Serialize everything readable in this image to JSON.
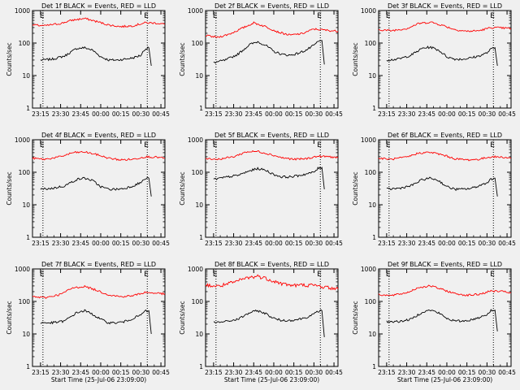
{
  "figure": {
    "background": "#f0f0f0",
    "series_colors": {
      "events": "#000000",
      "lld": "#ff0000"
    }
  },
  "chart_data": [
    {
      "type": "line",
      "title": "Det 1f BLACK = Events, RED = LLD",
      "ylabel": "Counts/sec",
      "xlabel": "",
      "yscale": "log",
      "ylim": [
        1,
        1000
      ],
      "y_ticks": [
        "1",
        "10",
        "100",
        "1000"
      ],
      "x_ticks": [
        "23:15",
        "23:30",
        "23:45",
        "00:00",
        "00:15",
        "00:30",
        "00:45"
      ],
      "xlim": [
        23.15,
        24.8
      ],
      "markers": [
        {
          "x": 23.28,
          "label": "E"
        },
        {
          "x": 24.58,
          "label": "E"
        }
      ],
      "series": [
        {
          "x": [
            23.25,
            23.4,
            23.55,
            23.7,
            23.8,
            23.9,
            24.0,
            24.1,
            24.2,
            24.3,
            24.4,
            24.5,
            24.55,
            24.6,
            24.63
          ],
          "values": [
            30,
            32,
            40,
            68,
            72,
            60,
            38,
            30,
            30,
            32,
            35,
            42,
            65,
            72,
            20
          ]
        },
        {
          "x": [
            23.15,
            23.3,
            23.5,
            23.65,
            23.8,
            23.95,
            24.1,
            24.25,
            24.4,
            24.55,
            24.7,
            24.8
          ],
          "values": [
            360,
            340,
            400,
            510,
            570,
            460,
            360,
            320,
            340,
            420,
            410,
            380
          ]
        }
      ]
    },
    {
      "type": "line",
      "title": "Det 2f BLACK = Events, RED = LLD",
      "ylabel": "Counts/sec",
      "xlabel": "",
      "yscale": "log",
      "ylim": [
        1,
        1000
      ],
      "y_ticks": [
        "1",
        "10",
        "100",
        "1000"
      ],
      "x_ticks": [
        "23:15",
        "23:30",
        "23:45",
        "00:00",
        "00:15",
        "00:30",
        "00:45"
      ],
      "xlim": [
        23.15,
        24.8
      ],
      "markers": [
        {
          "x": 23.28,
          "label": "E"
        },
        {
          "x": 24.58,
          "label": "E"
        }
      ],
      "series": [
        {
          "x": [
            23.25,
            23.4,
            23.55,
            23.7,
            23.8,
            23.9,
            24.0,
            24.1,
            24.2,
            24.3,
            24.4,
            24.5,
            24.55,
            24.6,
            24.63
          ],
          "values": [
            25,
            30,
            45,
            90,
            110,
            85,
            55,
            45,
            42,
            48,
            60,
            85,
            110,
            120,
            22
          ]
        },
        {
          "x": [
            23.15,
            23.3,
            23.45,
            23.6,
            23.75,
            23.9,
            24.05,
            24.2,
            24.35,
            24.5,
            24.65,
            24.8
          ],
          "values": [
            170,
            150,
            190,
            280,
            420,
            320,
            220,
            175,
            195,
            270,
            250,
            230
          ]
        }
      ]
    },
    {
      "type": "line",
      "title": "Det 3f BLACK = Events, RED = LLD",
      "ylabel": "Counts/sec",
      "xlabel": "",
      "yscale": "log",
      "ylim": [
        1,
        1000
      ],
      "y_ticks": [
        "1",
        "10",
        "100",
        "1000"
      ],
      "x_ticks": [
        "23:15",
        "23:30",
        "23:45",
        "00:00",
        "00:15",
        "00:30",
        "00:45"
      ],
      "xlim": [
        23.15,
        24.8
      ],
      "markers": [
        {
          "x": 23.28,
          "label": "E"
        },
        {
          "x": 24.58,
          "label": "E"
        }
      ],
      "series": [
        {
          "x": [
            23.25,
            23.4,
            23.55,
            23.7,
            23.8,
            23.9,
            24.0,
            24.1,
            24.2,
            24.3,
            24.4,
            24.5,
            24.55,
            24.6,
            24.63
          ],
          "values": [
            30,
            32,
            42,
            70,
            75,
            60,
            38,
            32,
            32,
            35,
            40,
            50,
            65,
            72,
            20
          ]
        },
        {
          "x": [
            23.15,
            23.3,
            23.5,
            23.65,
            23.8,
            23.95,
            24.1,
            24.25,
            24.4,
            24.55,
            24.7,
            24.8
          ],
          "values": [
            260,
            240,
            280,
            400,
            440,
            350,
            260,
            230,
            240,
            300,
            290,
            280
          ]
        }
      ]
    },
    {
      "type": "line",
      "title": "Det 4f BLACK = Events, RED = LLD",
      "ylabel": "Counts/sec",
      "xlabel": "",
      "yscale": "log",
      "ylim": [
        1,
        1000
      ],
      "y_ticks": [
        "1",
        "10",
        "100",
        "1000"
      ],
      "x_ticks": [
        "23:15",
        "23:30",
        "23:45",
        "00:00",
        "00:15",
        "00:30",
        "00:45"
      ],
      "xlim": [
        23.15,
        24.8
      ],
      "markers": [
        {
          "x": 23.28,
          "label": "E"
        },
        {
          "x": 24.58,
          "label": "E"
        }
      ],
      "series": [
        {
          "x": [
            23.25,
            23.4,
            23.55,
            23.7,
            23.8,
            23.9,
            24.0,
            24.1,
            24.2,
            24.3,
            24.4,
            24.5,
            24.55,
            24.6,
            24.63
          ],
          "values": [
            30,
            32,
            38,
            60,
            66,
            55,
            36,
            30,
            30,
            32,
            38,
            48,
            62,
            66,
            18
          ]
        },
        {
          "x": [
            23.15,
            23.3,
            23.5,
            23.65,
            23.8,
            23.95,
            24.1,
            24.25,
            24.4,
            24.55,
            24.7,
            24.8
          ],
          "values": [
            270,
            250,
            300,
            400,
            420,
            350,
            270,
            240,
            250,
            300,
            290,
            270
          ]
        }
      ]
    },
    {
      "type": "line",
      "title": "Det 5f BLACK = Events, RED = LLD",
      "ylabel": "Counts/sec",
      "xlabel": "",
      "yscale": "log",
      "ylim": [
        1,
        1000
      ],
      "y_ticks": [
        "1",
        "10",
        "100",
        "1000"
      ],
      "x_ticks": [
        "23:15",
        "23:30",
        "23:45",
        "00:00",
        "00:15",
        "00:30",
        "00:45"
      ],
      "xlim": [
        23.15,
        24.8
      ],
      "markers": [
        {
          "x": 23.28,
          "label": "E"
        },
        {
          "x": 24.58,
          "label": "E"
        }
      ],
      "series": [
        {
          "x": [
            23.25,
            23.4,
            23.55,
            23.7,
            23.8,
            23.9,
            24.0,
            24.1,
            24.2,
            24.3,
            24.4,
            24.5,
            24.55,
            24.6,
            24.63
          ],
          "values": [
            60,
            70,
            80,
            110,
            130,
            115,
            85,
            72,
            72,
            78,
            88,
            100,
            130,
            140,
            30
          ]
        },
        {
          "x": [
            23.15,
            23.3,
            23.5,
            23.65,
            23.8,
            23.95,
            24.1,
            24.25,
            24.4,
            24.55,
            24.7,
            24.8
          ],
          "values": [
            270,
            250,
            300,
            420,
            440,
            360,
            280,
            250,
            260,
            310,
            300,
            280
          ]
        }
      ]
    },
    {
      "type": "line",
      "title": "Det 6f BLACK = Events, RED = LLD",
      "ylabel": "Counts/sec",
      "xlabel": "",
      "yscale": "log",
      "ylim": [
        1,
        1000
      ],
      "y_ticks": [
        "1",
        "10",
        "100",
        "1000"
      ],
      "x_ticks": [
        "23:15",
        "23:30",
        "23:45",
        "00:00",
        "00:15",
        "00:30",
        "00:45"
      ],
      "xlim": [
        23.15,
        24.8
      ],
      "markers": [
        {
          "x": 23.28,
          "label": "E"
        },
        {
          "x": 24.58,
          "label": "E"
        }
      ],
      "series": [
        {
          "x": [
            23.25,
            23.4,
            23.55,
            23.7,
            23.8,
            23.9,
            24.0,
            24.1,
            24.2,
            24.3,
            24.4,
            24.5,
            24.55,
            24.6,
            24.63
          ],
          "values": [
            30,
            32,
            38,
            60,
            66,
            55,
            36,
            30,
            30,
            32,
            38,
            48,
            62,
            66,
            18
          ]
        },
        {
          "x": [
            23.15,
            23.3,
            23.5,
            23.65,
            23.8,
            23.95,
            24.1,
            24.25,
            24.4,
            24.55,
            24.7,
            24.8
          ],
          "values": [
            270,
            250,
            290,
            390,
            410,
            340,
            260,
            240,
            250,
            300,
            290,
            270
          ]
        }
      ]
    },
    {
      "type": "line",
      "title": "Det 7f BLACK = Events, RED = LLD",
      "ylabel": "Counts/sec",
      "xlabel": "Start Time (25-Jul-06 23:09:00)",
      "yscale": "log",
      "ylim": [
        1,
        1000
      ],
      "y_ticks": [
        "1",
        "10",
        "100",
        "1000"
      ],
      "x_ticks": [
        "23:15",
        "23:30",
        "23:45",
        "00:00",
        "00:15",
        "00:30",
        "00:45"
      ],
      "xlim": [
        23.15,
        24.8
      ],
      "markers": [
        {
          "x": 23.28,
          "label": "E"
        },
        {
          "x": 24.58,
          "label": "E"
        }
      ],
      "series": [
        {
          "x": [
            23.25,
            23.4,
            23.55,
            23.7,
            23.8,
            23.9,
            24.0,
            24.1,
            24.2,
            24.3,
            24.4,
            24.5,
            24.55,
            24.6,
            24.63
          ],
          "values": [
            22,
            22,
            25,
            45,
            52,
            40,
            28,
            22,
            22,
            24,
            30,
            38,
            50,
            52,
            10
          ]
        },
        {
          "x": [
            23.15,
            23.3,
            23.5,
            23.65,
            23.8,
            23.95,
            24.1,
            24.25,
            24.4,
            24.55,
            24.7,
            24.8
          ],
          "values": [
            140,
            130,
            165,
            260,
            290,
            220,
            160,
            140,
            150,
            190,
            180,
            170
          ]
        }
      ]
    },
    {
      "type": "line",
      "title": "Det 8f BLACK = Events, RED = LLD",
      "ylabel": "Counts/sec",
      "xlabel": "Start Time (25-Jul-06 23:09:00)",
      "yscale": "log",
      "ylim": [
        1,
        1000
      ],
      "y_ticks": [
        "1",
        "10",
        "100",
        "1000"
      ],
      "x_ticks": [
        "23:15",
        "23:30",
        "23:45",
        "00:00",
        "00:15",
        "00:30",
        "00:45"
      ],
      "xlim": [
        23.15,
        24.8
      ],
      "markers": [
        {
          "x": 23.28,
          "label": "E"
        },
        {
          "x": 24.58,
          "label": "E"
        }
      ],
      "series": [
        {
          "x": [
            23.25,
            23.4,
            23.55,
            23.7,
            23.8,
            23.9,
            24.0,
            24.1,
            24.2,
            24.3,
            24.4,
            24.5,
            24.55,
            24.6,
            24.63
          ],
          "values": [
            22,
            24,
            28,
            45,
            52,
            42,
            30,
            26,
            26,
            28,
            32,
            40,
            50,
            52,
            8
          ]
        },
        {
          "x": [
            23.15,
            23.3,
            23.5,
            23.65,
            23.8,
            23.95,
            24.1,
            24.25,
            24.4,
            24.55,
            24.7,
            24.8
          ],
          "values": [
            320,
            290,
            380,
            520,
            600,
            470,
            350,
            310,
            320,
            300,
            260,
            240
          ]
        }
      ]
    },
    {
      "type": "line",
      "title": "Det 9f BLACK = Events, RED = LLD",
      "ylabel": "Counts/sec",
      "xlabel": "Start Time (25-Jul-06 23:09:00)",
      "yscale": "log",
      "ylim": [
        1,
        1000
      ],
      "y_ticks": [
        "1",
        "10",
        "100",
        "1000"
      ],
      "x_ticks": [
        "23:15",
        "23:30",
        "23:45",
        "00:00",
        "00:15",
        "00:30",
        "00:45"
      ],
      "xlim": [
        23.15,
        24.8
      ],
      "markers": [
        {
          "x": 23.28,
          "label": "E"
        },
        {
          "x": 24.58,
          "label": "E"
        }
      ],
      "series": [
        {
          "x": [
            23.25,
            23.4,
            23.55,
            23.7,
            23.8,
            23.9,
            24.0,
            24.1,
            24.2,
            24.3,
            24.4,
            24.5,
            24.55,
            24.6,
            24.63
          ],
          "values": [
            24,
            24,
            28,
            48,
            54,
            44,
            30,
            25,
            25,
            27,
            32,
            40,
            52,
            54,
            12
          ]
        },
        {
          "x": [
            23.15,
            23.3,
            23.5,
            23.65,
            23.8,
            23.95,
            24.1,
            24.25,
            24.4,
            24.55,
            24.7,
            24.8
          ],
          "values": [
            165,
            150,
            185,
            270,
            300,
            230,
            175,
            155,
            165,
            210,
            200,
            185
          ]
        }
      ]
    }
  ]
}
